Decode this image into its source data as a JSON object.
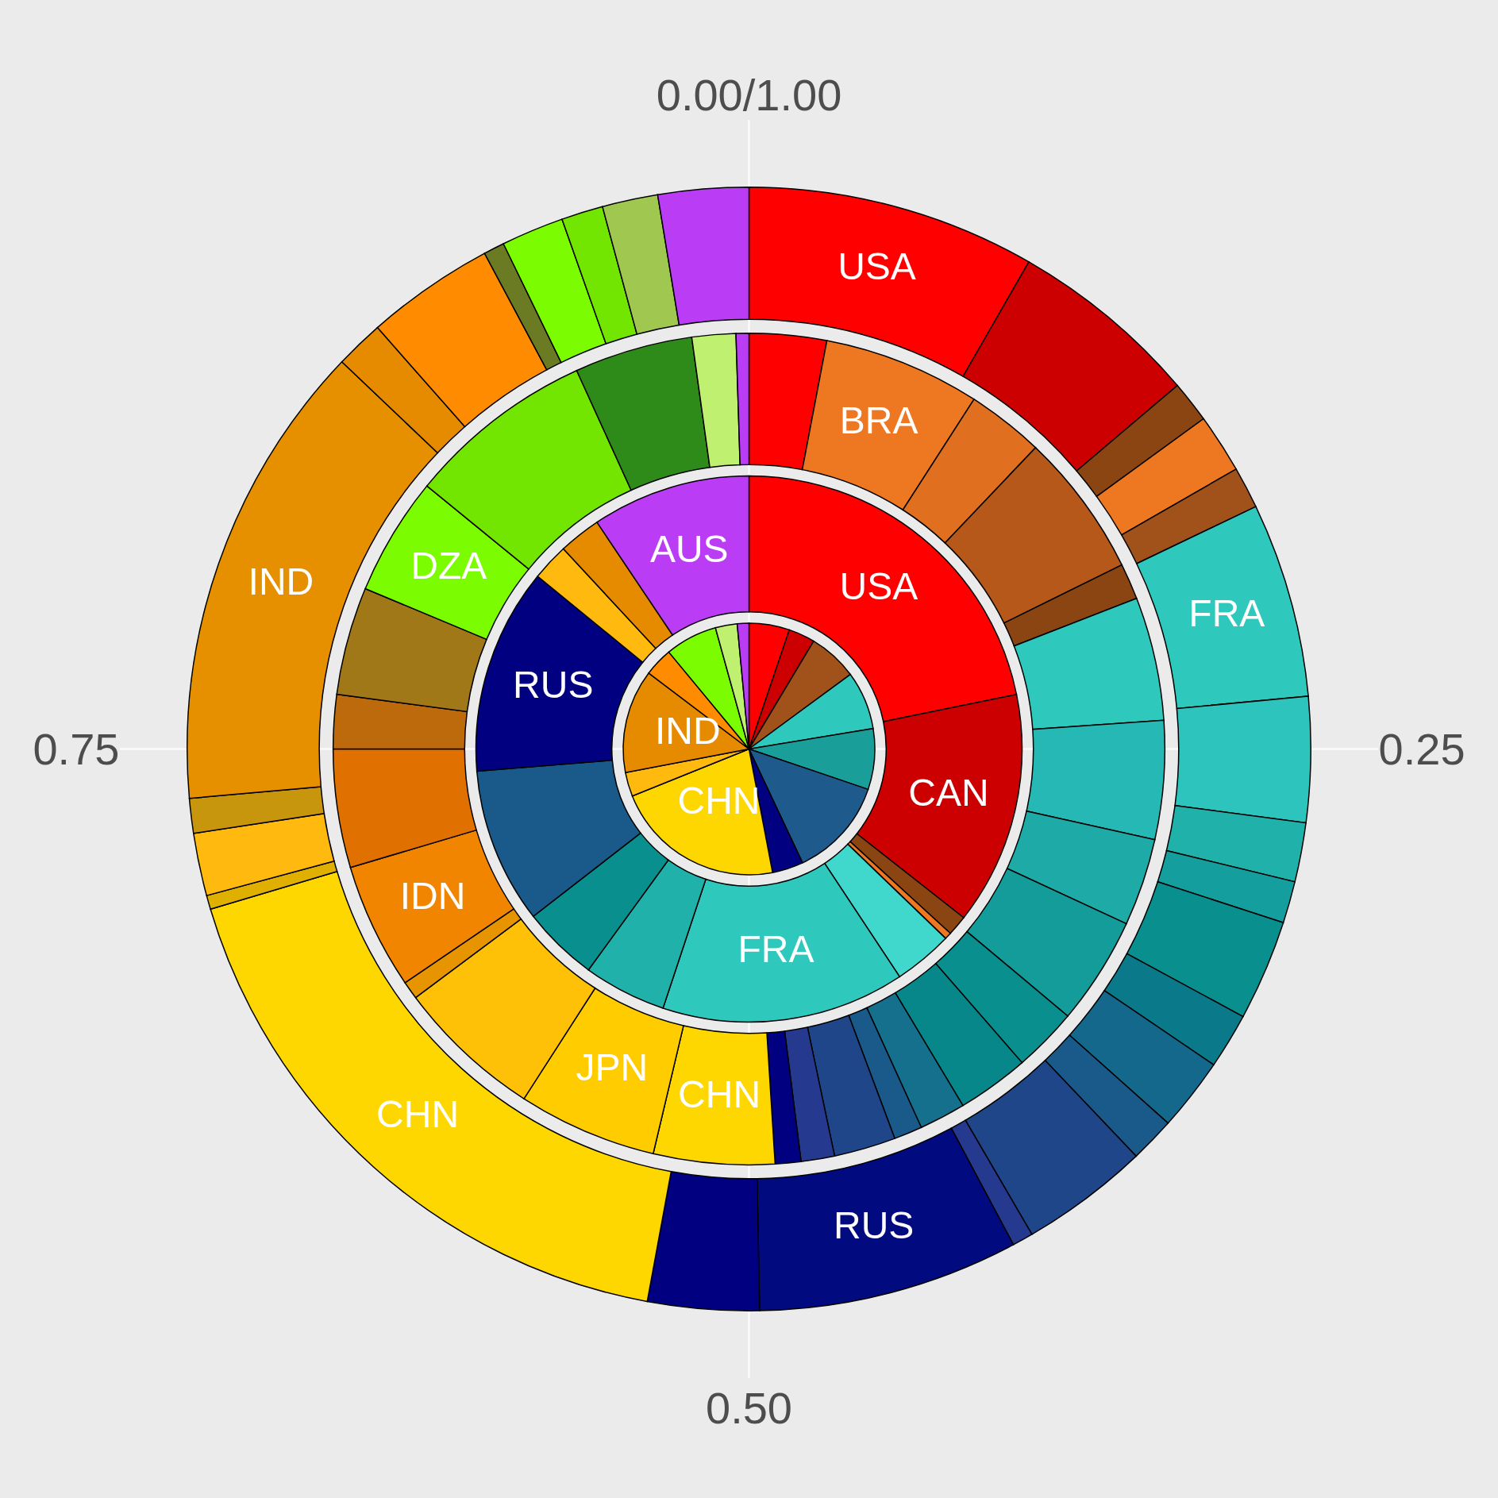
{
  "chart_data": [
    {
      "type": "pie",
      "categories": [
        null,
        null,
        null,
        null,
        null,
        null,
        null,
        "CHN",
        null,
        "IND",
        null,
        null,
        null,
        null
      ],
      "values": [
        5.2,
        3.4,
        6.3,
        7.5,
        7.8,
        12.8,
        4.0,
        21.9,
        3.1,
        13.3,
        3.7,
        6.7,
        2.8,
        1.5
      ],
      "colors": [
        "#ff0000",
        "#cc0000",
        "#a0521a",
        "#2ec8bc",
        "#1a9e9a",
        "#1f5a8c",
        "#000080",
        "#ffd700",
        "#ffb90f",
        "#e68a00",
        "#ff8c00",
        "#7cfc00",
        "#c0f070",
        "#bb3cf5"
      ]
    },
    {
      "type": "donut",
      "categories": [
        "USA",
        "CAN",
        null,
        null,
        null,
        "FRA",
        null,
        null,
        null,
        "RUS",
        null,
        null,
        "AUS"
      ],
      "values": [
        21.8,
        13.8,
        1.2,
        0.4,
        3.5,
        14.4,
        4.9,
        4.5,
        9.2,
        12.2,
        2.2,
        2.5,
        9.4
      ],
      "colors": [
        "#ff0000",
        "#cc0000",
        "#8b4513",
        "#ee7722",
        "#40d8cc",
        "#2ec8bc",
        "#20b2aa",
        "#0a8f8f",
        "#1a5a8a",
        "#000080",
        "#ffb90f",
        "#e68a00",
        "#bb3cf5"
      ]
    },
    {
      "type": "donut",
      "categories": [
        null,
        "BRA",
        null,
        null,
        null,
        null,
        null,
        null,
        null,
        null,
        null,
        null,
        null,
        null,
        null,
        null,
        "CHN",
        "JPN",
        null,
        null,
        "IDN",
        null,
        null,
        null,
        "DZA",
        null,
        null,
        null,
        null
      ],
      "values": [
        3.0,
        6.1,
        3.0,
        5.6,
        1.4,
        4.8,
        4.6,
        3.4,
        4.2,
        2.5,
        2.8,
        1.8,
        1.1,
        2.4,
        1.3,
        1.0,
        4.7,
        5.4,
        5.7,
        0.7,
        4.9,
        4.6,
        2.1,
        4.2,
        4.6,
        7.3,
        4.6,
        1.7,
        0.5
      ],
      "colors": [
        "#ff0000",
        "#ee7722",
        "#e07020",
        "#b5581a",
        "#8b4513",
        "#2ec8bc",
        "#26b8b4",
        "#1eaaa6",
        "#139c9a",
        "#0a8f8f",
        "#08878a",
        "#14708c",
        "#1a5a8a",
        "#20468a",
        "#253a8e",
        "#000080",
        "#ffd700",
        "#ffcc00",
        "#ffc107",
        "#e69500",
        "#f28500",
        "#e07000",
        "#bc6a0c",
        "#a07818",
        "#7cfc00",
        "#72e600",
        "#2e8b1a",
        "#c0f070",
        "#bb3cf5"
      ]
    },
    {
      "type": "donut",
      "annotations": [
        "0.00/1.00",
        "0.25",
        "0.50",
        "0.75"
      ],
      "grid": true,
      "categories": [
        "USA",
        null,
        null,
        null,
        null,
        "FRA",
        null,
        null,
        null,
        null,
        null,
        null,
        null,
        null,
        null,
        "RUS",
        null,
        "CHN",
        null,
        null,
        null,
        "IND",
        null,
        null,
        null,
        null,
        null,
        null,
        null
      ],
      "values": [
        8.3,
        5.5,
        1.2,
        1.7,
        1.2,
        5.6,
        3.6,
        1.7,
        1.2,
        2.9,
        1.6,
        2.1,
        1.3,
        3.7,
        0.6,
        7.5,
        3.2,
        17.5,
        0.4,
        1.8,
        1.0,
        13.5,
        1.4,
        3.7,
        0.6,
        1.8,
        1.2,
        1.6,
        2.6
      ],
      "colors": [
        "#ff0000",
        "#cc0000",
        "#8b4513",
        "#ee7722",
        "#a0521a",
        "#2ec8bc",
        "#2cc4bc",
        "#20b2aa",
        "#149e9e",
        "#0a8f8f",
        "#0a7a8a",
        "#14688c",
        "#1a5a8a",
        "#20468a",
        "#253a8e",
        "#020a80",
        "#000080",
        "#ffd700",
        "#e0b000",
        "#ffb90f",
        "#c8960c",
        "#e69000",
        "#e68a00",
        "#ff8c00",
        "#6b7b23",
        "#7cfc00",
        "#72e600",
        "#a0c850",
        "#bb3cf5"
      ]
    }
  ]
}
